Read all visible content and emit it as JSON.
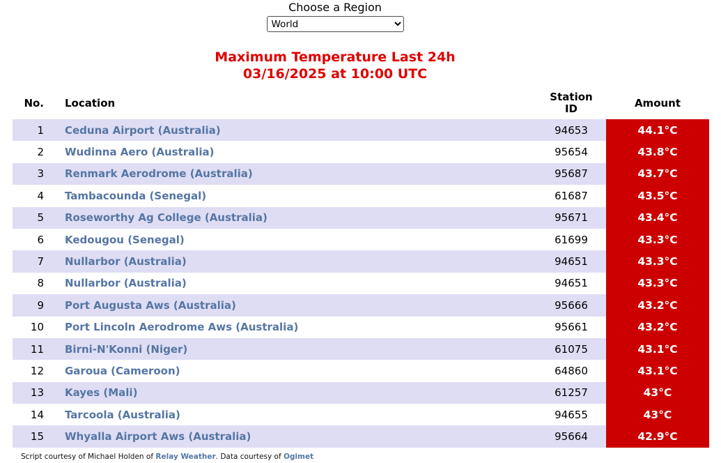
{
  "region_selector": {
    "label": "Choose a Region",
    "selected": "World"
  },
  "title": {
    "line1": "Maximum Temperature Last 24h",
    "line2": "03/16/2025 at 10:00 UTC"
  },
  "table": {
    "headers": {
      "no": "No.",
      "location": "Location",
      "station_id": "Station ID",
      "amount": "Amount"
    },
    "rows": [
      {
        "no": "1",
        "location": "Ceduna Airport (Australia)",
        "station_id": "94653",
        "amount": "44.1°C"
      },
      {
        "no": "2",
        "location": "Wudinna Aero (Australia)",
        "station_id": "95654",
        "amount": "43.8°C"
      },
      {
        "no": "3",
        "location": "Renmark Aerodrome (Australia)",
        "station_id": "95687",
        "amount": "43.7°C"
      },
      {
        "no": "4",
        "location": "Tambacounda (Senegal)",
        "station_id": "61687",
        "amount": "43.5°C"
      },
      {
        "no": "5",
        "location": "Roseworthy Ag College (Australia)",
        "station_id": "95671",
        "amount": "43.4°C"
      },
      {
        "no": "6",
        "location": "Kedougou (Senegal)",
        "station_id": "61699",
        "amount": "43.3°C"
      },
      {
        "no": "7",
        "location": "Nullarbor (Australia)",
        "station_id": "94651",
        "amount": "43.3°C"
      },
      {
        "no": "8",
        "location": "Nullarbor (Australia)",
        "station_id": "94651",
        "amount": "43.3°C"
      },
      {
        "no": "9",
        "location": "Port Augusta Aws (Australia)",
        "station_id": "95666",
        "amount": "43.2°C"
      },
      {
        "no": "10",
        "location": "Port Lincoln Aerodrome Aws (Australia)",
        "station_id": "95661",
        "amount": "43.2°C"
      },
      {
        "no": "11",
        "location": "Birni-N'Konni (Niger)",
        "station_id": "61075",
        "amount": "43.1°C"
      },
      {
        "no": "12",
        "location": "Garoua (Cameroon)",
        "station_id": "64860",
        "amount": "43.1°C"
      },
      {
        "no": "13",
        "location": "Kayes (Mali)",
        "station_id": "61257",
        "amount": "43°C"
      },
      {
        "no": "14",
        "location": "Tarcoola (Australia)",
        "station_id": "94655",
        "amount": "43°C"
      },
      {
        "no": "15",
        "location": "Whyalla Airport Aws (Australia)",
        "station_id": "95664",
        "amount": "42.9°C"
      }
    ]
  },
  "footer": {
    "prefix": "Script courtesy of  Michael Holden of ",
    "relay_link": "Relay Weather",
    "middle": ". Data courtesy of ",
    "ogimet_link": "Ogimet"
  },
  "colors": {
    "title_red": "#e00000",
    "amount_cell_bg": "#cc0000",
    "amount_cell_text": "#ffffff",
    "row_stripe": "#dfddf4",
    "link_blue": "#5576a4"
  }
}
